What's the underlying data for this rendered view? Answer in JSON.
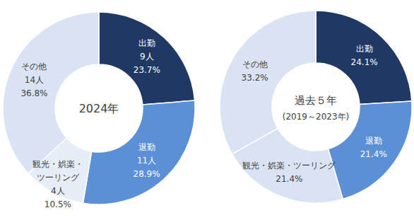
{
  "chart_data": [
    {
      "type": "pie",
      "title": "2024年",
      "categories": [
        "出勤",
        "退勤",
        "観光・娯楽・ツーリング",
        "その他"
      ],
      "values": [
        23.7,
        28.9,
        10.5,
        36.8
      ],
      "value_labels": [
        "23.7%",
        "28.9%",
        "10.5%",
        "36.8%"
      ],
      "counts": [
        9,
        11,
        4,
        14
      ],
      "count_labels": [
        "9人",
        "11人",
        "4人",
        "14人"
      ],
      "colors": [
        "#203864",
        "#5b8fd6",
        "#e6edf7",
        "#dae3f3"
      ],
      "data_labels": true
    },
    {
      "type": "pie",
      "title": "過去５年",
      "subtitle": "(2019～2023年)",
      "categories": [
        "出勤",
        "退勤",
        "観光・娯楽・ツーリング",
        "その他"
      ],
      "values": [
        24.1,
        21.4,
        21.4,
        33.2
      ],
      "value_labels": [
        "24.1%",
        "21.4%",
        "21.4%",
        "33.2%"
      ],
      "colors": [
        "#203864",
        "#5b8fd6",
        "#dae3f3",
        "#dae3f3"
      ],
      "data_labels": true
    }
  ]
}
